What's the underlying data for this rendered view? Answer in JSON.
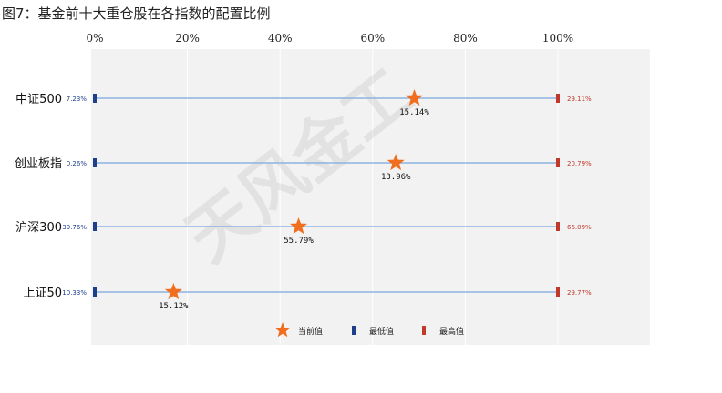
{
  "title": "图7：基金前十大重仓股在各指数的配置比例",
  "watermark": "天风金工",
  "colors": {
    "current": "#f06e1e",
    "min": "#1f3f8a",
    "max": "#c0392b",
    "line": "#8db3e2",
    "plot_bg": "#f2f2f2"
  },
  "chart_data": {
    "type": "range",
    "categories": [
      "中证500",
      "创业板指",
      "沪深300",
      "上证50"
    ],
    "series": [
      {
        "name": "当前值",
        "values": [
          69,
          65,
          44,
          17
        ],
        "labels": [
          "15.14%",
          "13.96%",
          "55.79%",
          "15.12%"
        ]
      },
      {
        "name": "最低值",
        "values": [
          0,
          0,
          0,
          0
        ],
        "labels": [
          "7.23%",
          "0.26%",
          "39.76%",
          "10.33%"
        ]
      },
      {
        "name": "最高值",
        "values": [
          100,
          100,
          100,
          100
        ],
        "labels": [
          "29.11%",
          "20.79%",
          "66.09%",
          "29.77%"
        ]
      }
    ],
    "xlim": [
      0,
      100
    ],
    "xticks": [
      "0%",
      "20%",
      "40%",
      "60%",
      "80%",
      "100%"
    ],
    "grid": true,
    "legend": "bottom"
  }
}
